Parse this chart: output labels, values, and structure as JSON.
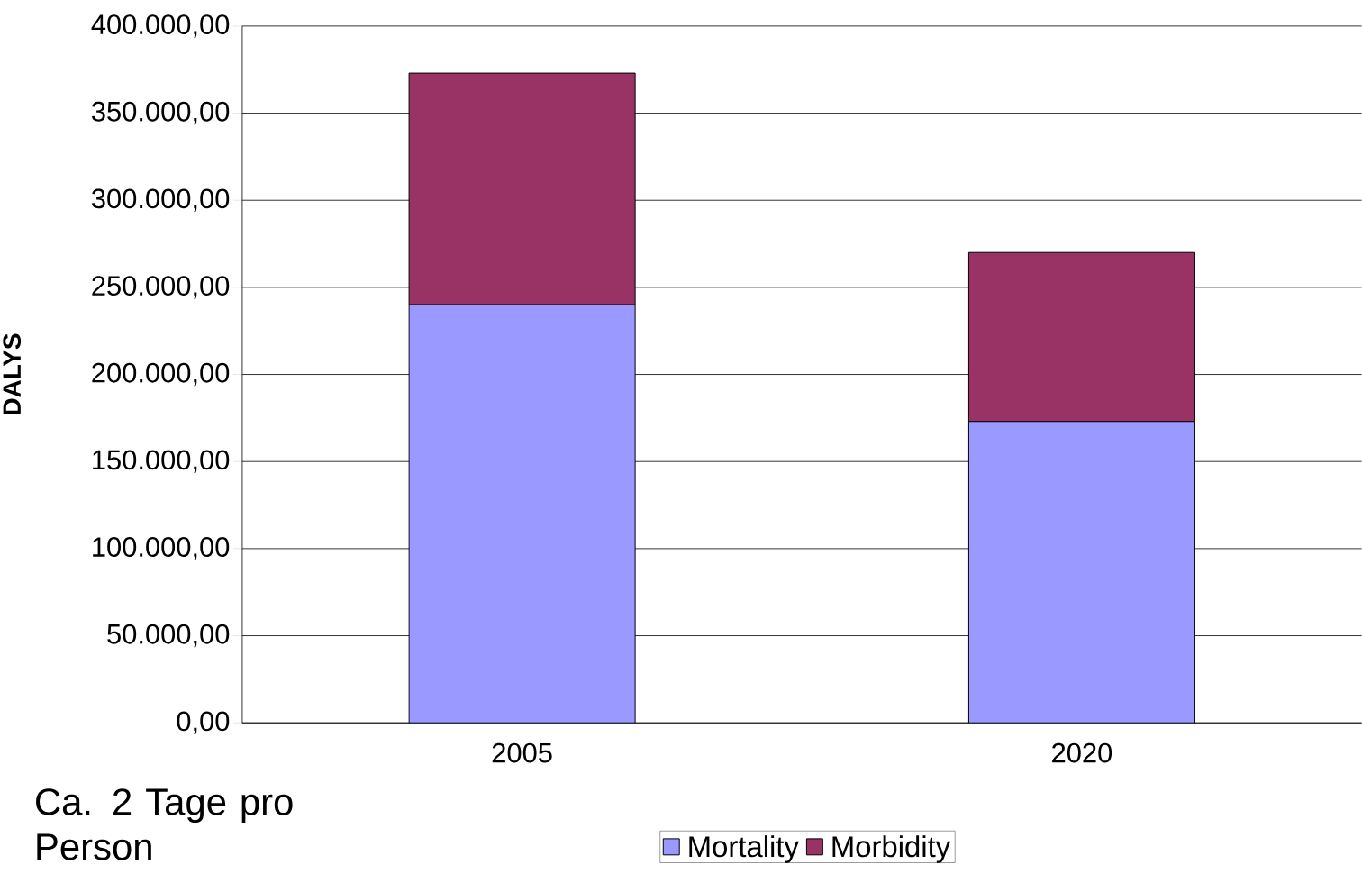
{
  "chart_data": {
    "type": "bar",
    "stacked": true,
    "ylabel": "DALYS",
    "categories": [
      "2005",
      "2020"
    ],
    "series": [
      {
        "name": "Mortality",
        "color": "#9999ff",
        "values": [
          240000,
          173000
        ]
      },
      {
        "name": "Morbidity",
        "color": "#993366",
        "values": [
          133000,
          97000
        ]
      }
    ],
    "ylim": [
      0,
      400000
    ],
    "yticks": [
      {
        "value": 0,
        "label": "0,00"
      },
      {
        "value": 50000,
        "label": "50.000,00"
      },
      {
        "value": 100000,
        "label": "100.000,00"
      },
      {
        "value": 150000,
        "label": "150.000,00"
      },
      {
        "value": 200000,
        "label": "200.000,00"
      },
      {
        "value": 250000,
        "label": "250.000,00"
      },
      {
        "value": 300000,
        "label": "300.000,00"
      },
      {
        "value": 350000,
        "label": "350.000,00"
      },
      {
        "value": 400000,
        "label": "400.000,00"
      }
    ],
    "grid": "y",
    "legend": "bottom",
    "annotations": [
      "Ca. 2 Tage pro Person"
    ]
  }
}
